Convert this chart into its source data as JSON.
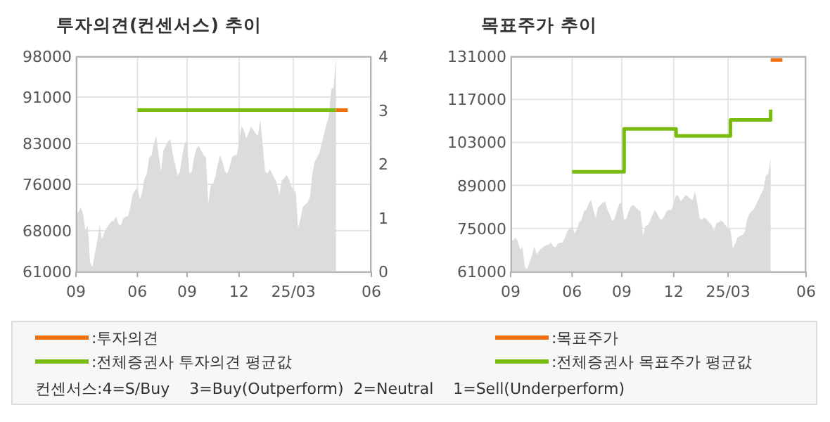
{
  "chart_data": [
    {
      "type": "area",
      "title": "투자의견(컨센서스) 추이",
      "categories": [
        "09",
        null,
        null,
        null,
        null,
        null,
        null,
        null,
        null,
        null,
        null,
        null,
        null,
        null,
        null,
        null,
        null,
        null,
        null,
        null,
        null,
        null,
        null,
        null,
        null,
        null,
        "06",
        null,
        null,
        null,
        null,
        null,
        null,
        null,
        null,
        null,
        null,
        null,
        null,
        null,
        null,
        null,
        null,
        null,
        null,
        null,
        null,
        "09",
        null,
        null,
        null,
        null,
        null,
        null,
        null,
        null,
        null,
        null,
        null,
        null,
        null,
        null,
        null,
        null,
        null,
        null,
        null,
        null,
        null,
        "12",
        null,
        null,
        null,
        null,
        null,
        null,
        null,
        null,
        null,
        null,
        null,
        null,
        null,
        null,
        null,
        null,
        null,
        null,
        null,
        null,
        null,
        null,
        "25/03",
        null,
        null,
        null,
        null,
        null,
        null,
        null,
        null,
        null,
        null,
        null,
        null,
        null,
        null,
        null,
        null,
        null,
        null,
        null,
        null,
        null,
        null,
        null,
        null,
        null,
        null,
        null,
        null,
        null,
        null,
        null,
        null,
        "06"
      ],
      "ylim": [
        61000,
        98000
      ],
      "yticks": [
        61000,
        68000,
        76000,
        83000,
        91000,
        98000
      ],
      "y2lim": [
        0,
        4
      ],
      "y2ticks": [
        0,
        1,
        2,
        3,
        4
      ],
      "grid": true,
      "legend": "bottom",
      "series": [
        {
          "color": "#dcdcdc",
          "values": [
            70900,
            71200,
            72000,
            70900,
            68100,
            68900,
            62500,
            61800,
            64100,
            66100,
            69100,
            66500,
            67700,
            68500,
            69100,
            69600,
            69700,
            70500,
            69100,
            68900,
            70100,
            70400,
            70500,
            72100,
            74200,
            75000,
            75400,
            73400,
            74600,
            77000,
            77800,
            80600,
            81000,
            83100,
            84300,
            81000,
            78200,
            81800,
            82600,
            83500,
            83600,
            81000,
            79400,
            77400,
            78200,
            81000,
            83100,
            83500,
            77800,
            78200,
            80600,
            82200,
            82600,
            81800,
            81000,
            80600,
            72600,
            75800,
            76000,
            77400,
            79400,
            81000,
            79800,
            78200,
            77800,
            79000,
            80600,
            81000,
            81000,
            83100,
            86000,
            85400,
            83900,
            84700,
            85900,
            85400,
            84700,
            84300,
            87100,
            82900,
            78200,
            77800,
            78600,
            77800,
            77000,
            76200,
            74200,
            76600,
            77000,
            77600,
            77000,
            75800,
            75000,
            74600,
            68500,
            70100,
            72100,
            72500,
            72900,
            73700,
            77800,
            79800,
            80600,
            81400,
            83100,
            84700,
            86300,
            87700,
            92300,
            92700,
            97800,
            null,
            null,
            null,
            null,
            null,
            null,
            null,
            null,
            null,
            null,
            null,
            null,
            null,
            null,
            null
          ]
        },
        {
          "type": "line",
          "axis": "y2",
          "name": ":전체증권사 투자의견 평균값",
          "color": "#78bc10",
          "values": [
            null,
            null,
            null,
            null,
            null,
            null,
            null,
            null,
            null,
            null,
            null,
            null,
            null,
            null,
            null,
            null,
            null,
            null,
            null,
            null,
            null,
            null,
            null,
            null,
            null,
            null,
            3,
            3,
            3,
            3,
            3,
            3,
            3,
            3,
            3,
            3,
            3,
            3,
            3,
            3,
            3,
            3,
            3,
            3,
            3,
            3,
            3,
            3,
            3,
            3,
            3,
            3,
            3,
            3,
            3,
            3,
            3,
            3,
            3,
            3,
            3,
            3,
            3,
            3,
            3,
            3,
            3,
            3,
            3,
            3,
            3,
            3,
            3,
            3,
            3,
            3,
            3,
            3,
            3,
            3,
            3,
            3,
            3,
            3,
            3,
            3,
            3,
            3,
            3,
            3,
            3,
            3,
            3,
            3,
            3,
            3,
            3,
            3,
            3,
            3,
            3,
            3,
            3,
            3,
            3,
            3,
            3,
            3,
            3,
            3,
            3,
            null,
            null,
            null,
            null,
            null,
            null,
            null,
            null,
            null,
            null,
            null,
            null,
            null,
            null,
            null
          ]
        },
        {
          "type": "line",
          "axis": "y2",
          "name": ":투자의견",
          "color": "#f07010",
          "values": [
            null,
            null,
            null,
            null,
            null,
            null,
            null,
            null,
            null,
            null,
            null,
            null,
            null,
            null,
            null,
            null,
            null,
            null,
            null,
            null,
            null,
            null,
            null,
            null,
            null,
            null,
            null,
            null,
            null,
            null,
            null,
            null,
            null,
            null,
            null,
            null,
            null,
            null,
            null,
            null,
            null,
            null,
            null,
            null,
            null,
            null,
            null,
            null,
            null,
            null,
            null,
            null,
            null,
            null,
            null,
            null,
            null,
            null,
            null,
            null,
            null,
            null,
            null,
            null,
            null,
            null,
            null,
            null,
            null,
            null,
            null,
            null,
            null,
            null,
            null,
            null,
            null,
            null,
            null,
            null,
            null,
            null,
            null,
            null,
            null,
            null,
            null,
            null,
            null,
            null,
            null,
            null,
            null,
            null,
            null,
            null,
            null,
            null,
            null,
            null,
            null,
            null,
            null,
            null,
            null,
            null,
            null,
            null,
            null,
            null,
            3,
            3,
            3,
            3,
            3,
            3,
            null,
            null,
            null,
            null,
            null,
            null,
            null,
            null,
            null,
            null
          ]
        }
      ],
      "annotations": [
        "컨센서스:4=S/Buy    3=Buy(Outperform)  2=Neutral    1=Sell(Underperform)"
      ]
    },
    {
      "type": "area",
      "title": "목표주가 추이",
      "categories": [
        "09",
        null,
        null,
        null,
        null,
        null,
        null,
        null,
        null,
        null,
        null,
        null,
        null,
        null,
        null,
        null,
        null,
        null,
        null,
        null,
        null,
        null,
        null,
        null,
        null,
        null,
        "06",
        null,
        null,
        null,
        null,
        null,
        null,
        null,
        null,
        null,
        null,
        null,
        null,
        null,
        null,
        null,
        null,
        null,
        null,
        null,
        null,
        "09",
        null,
        null,
        null,
        null,
        null,
        null,
        null,
        null,
        null,
        null,
        null,
        null,
        null,
        null,
        null,
        null,
        null,
        null,
        null,
        null,
        null,
        "12",
        null,
        null,
        null,
        null,
        null,
        null,
        null,
        null,
        null,
        null,
        null,
        null,
        null,
        null,
        null,
        null,
        null,
        null,
        null,
        null,
        null,
        null,
        "25/03",
        null,
        null,
        null,
        null,
        null,
        null,
        null,
        null,
        null,
        null,
        null,
        null,
        null,
        null,
        null,
        null,
        null,
        null,
        null,
        null,
        null,
        null,
        null,
        null,
        null,
        null,
        null,
        null,
        null,
        null,
        null,
        null,
        "06"
      ],
      "ylim": [
        61000,
        131000
      ],
      "yticks": [
        61000,
        75000,
        89000,
        103000,
        117000,
        131000
      ],
      "grid": true,
      "legend": "bottom",
      "series": [
        {
          "color": "#dcdcdc",
          "values": [
            70900,
            71200,
            72000,
            70900,
            68100,
            68900,
            62500,
            61800,
            64100,
            66100,
            69100,
            66500,
            67700,
            68500,
            69100,
            69600,
            69700,
            70500,
            69100,
            68900,
            70100,
            70400,
            70500,
            72100,
            74200,
            75000,
            75400,
            73400,
            74600,
            77000,
            77800,
            80600,
            81000,
            83100,
            84300,
            81000,
            78200,
            81800,
            82600,
            83500,
            83600,
            81000,
            79400,
            77400,
            78200,
            81000,
            83100,
            83500,
            77800,
            78200,
            80600,
            82200,
            82600,
            81800,
            81000,
            80600,
            72600,
            75800,
            76000,
            77400,
            79400,
            81000,
            79800,
            78200,
            77800,
            79000,
            80600,
            81000,
            81000,
            83100,
            86000,
            85400,
            83900,
            84700,
            85900,
            85400,
            84700,
            84300,
            87100,
            82900,
            78200,
            77800,
            78600,
            77800,
            77000,
            76200,
            74200,
            76600,
            77000,
            77600,
            77000,
            75800,
            75000,
            74600,
            68500,
            70100,
            72100,
            72500,
            72900,
            73700,
            77800,
            79800,
            80600,
            81400,
            83100,
            84700,
            86300,
            87700,
            92300,
            92700,
            97800,
            null,
            null,
            null,
            null,
            null,
            null,
            null,
            null,
            null,
            null,
            null,
            null,
            null,
            null,
            null
          ]
        },
        {
          "type": "step",
          "name": ":전체증권사 목표주가 평균값",
          "color": "#78bc10",
          "values": [
            null,
            null,
            null,
            null,
            null,
            null,
            null,
            null,
            null,
            null,
            null,
            null,
            null,
            null,
            null,
            null,
            null,
            null,
            null,
            null,
            null,
            null,
            null,
            null,
            null,
            null,
            93400,
            93400,
            93400,
            93400,
            93400,
            93400,
            93400,
            93400,
            93400,
            93400,
            93400,
            93400,
            93400,
            93400,
            93400,
            93400,
            93400,
            93400,
            93400,
            93400,
            93400,
            93400,
            107400,
            107400,
            107400,
            107400,
            107400,
            107400,
            107400,
            107400,
            107400,
            107400,
            107400,
            107400,
            107400,
            107400,
            107400,
            107400,
            107400,
            107400,
            107400,
            107400,
            107400,
            107400,
            105100,
            105100,
            105100,
            105100,
            105100,
            105100,
            105100,
            105100,
            105100,
            105100,
            105100,
            105100,
            105100,
            105100,
            105100,
            105100,
            105100,
            105100,
            105100,
            105100,
            105100,
            105100,
            105100,
            110300,
            110300,
            110300,
            110300,
            110300,
            110300,
            110300,
            110300,
            110300,
            110300,
            110300,
            110300,
            110300,
            110300,
            110300,
            110300,
            110300,
            113700,
            null,
            null,
            null,
            null,
            null,
            null,
            null,
            null,
            null,
            null,
            null,
            null,
            null,
            null,
            null
          ]
        },
        {
          "type": "line",
          "name": ":목표주가",
          "color": "#f07010",
          "values": [
            null,
            null,
            null,
            null,
            null,
            null,
            null,
            null,
            null,
            null,
            null,
            null,
            null,
            null,
            null,
            null,
            null,
            null,
            null,
            null,
            null,
            null,
            null,
            null,
            null,
            null,
            null,
            null,
            null,
            null,
            null,
            null,
            null,
            null,
            null,
            null,
            null,
            null,
            null,
            null,
            null,
            null,
            null,
            null,
            null,
            null,
            null,
            null,
            null,
            null,
            null,
            null,
            null,
            null,
            null,
            null,
            null,
            null,
            null,
            null,
            null,
            null,
            null,
            null,
            null,
            null,
            null,
            null,
            null,
            null,
            null,
            null,
            null,
            null,
            null,
            null,
            null,
            null,
            null,
            null,
            null,
            null,
            null,
            null,
            null,
            null,
            null,
            null,
            null,
            null,
            null,
            null,
            null,
            null,
            null,
            null,
            null,
            null,
            null,
            null,
            null,
            null,
            null,
            null,
            null,
            null,
            null,
            null,
            null,
            null,
            129800,
            129800,
            129800,
            129800,
            129800,
            129800,
            null,
            null,
            null,
            null,
            null,
            null,
            null,
            null,
            null,
            null
          ]
        }
      ]
    }
  ]
}
